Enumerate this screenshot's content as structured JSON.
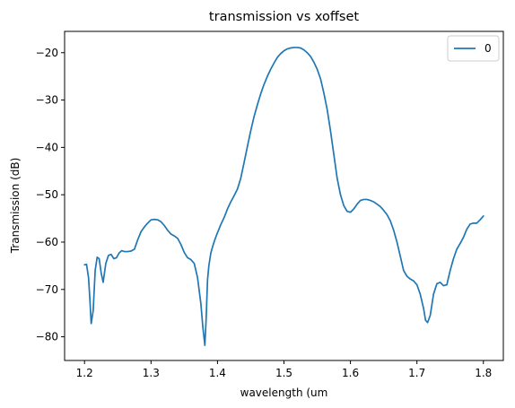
{
  "chart_data": {
    "type": "line",
    "title": "transmission vs xoffset",
    "xlabel": "wavelength (um",
    "ylabel": "Transmission (dB)",
    "xlim": [
      1.17,
      1.83
    ],
    "ylim": [
      -85,
      -15.5
    ],
    "xticks": [
      1.2,
      1.3,
      1.4,
      1.5,
      1.6,
      1.7,
      1.8
    ],
    "xtick_labels": [
      "1.2",
      "1.3",
      "1.4",
      "1.5",
      "1.6",
      "1.7",
      "1.8"
    ],
    "yticks": [
      -80,
      -70,
      -60,
      -50,
      -40,
      -30,
      -20
    ],
    "ytick_labels": [
      "−80",
      "−70",
      "−60",
      "−50",
      "−40",
      "−30",
      "−20"
    ],
    "grid": false,
    "legend_position": "top-right",
    "colors": {
      "series": "#1f77b4",
      "axes": "#000000",
      "legend_border": "#cccccc"
    },
    "series": [
      {
        "name": "0",
        "x": [
          1.2,
          1.203,
          1.206,
          1.208,
          1.21,
          1.213,
          1.216,
          1.219,
          1.222,
          1.225,
          1.228,
          1.232,
          1.236,
          1.24,
          1.244,
          1.248,
          1.252,
          1.256,
          1.26,
          1.265,
          1.27,
          1.275,
          1.28,
          1.285,
          1.29,
          1.295,
          1.3,
          1.305,
          1.31,
          1.315,
          1.32,
          1.325,
          1.33,
          1.335,
          1.34,
          1.345,
          1.35,
          1.355,
          1.36,
          1.365,
          1.37,
          1.375,
          1.378,
          1.381,
          1.383,
          1.385,
          1.387,
          1.39,
          1.393,
          1.396,
          1.4,
          1.405,
          1.41,
          1.415,
          1.42,
          1.425,
          1.43,
          1.435,
          1.44,
          1.445,
          1.45,
          1.455,
          1.46,
          1.465,
          1.47,
          1.475,
          1.48,
          1.485,
          1.49,
          1.495,
          1.5,
          1.505,
          1.51,
          1.515,
          1.52,
          1.525,
          1.53,
          1.535,
          1.54,
          1.545,
          1.55,
          1.555,
          1.56,
          1.565,
          1.57,
          1.575,
          1.58,
          1.585,
          1.59,
          1.595,
          1.6,
          1.605,
          1.61,
          1.615,
          1.62,
          1.625,
          1.63,
          1.635,
          1.64,
          1.645,
          1.65,
          1.655,
          1.66,
          1.665,
          1.67,
          1.675,
          1.68,
          1.685,
          1.69,
          1.695,
          1.7,
          1.705,
          1.71,
          1.713,
          1.716,
          1.72,
          1.725,
          1.73,
          1.735,
          1.74,
          1.745,
          1.75,
          1.755,
          1.76,
          1.765,
          1.77,
          1.775,
          1.78,
          1.785,
          1.79,
          1.795,
          1.8
        ],
        "y": [
          -64.8,
          -64.7,
          -67.5,
          -72.0,
          -77.2,
          -74.5,
          -66.0,
          -63.2,
          -63.5,
          -66.5,
          -68.5,
          -64.5,
          -62.8,
          -62.6,
          -63.5,
          -63.3,
          -62.3,
          -61.8,
          -62.0,
          -62.0,
          -61.9,
          -61.5,
          -59.5,
          -57.8,
          -56.8,
          -56.0,
          -55.3,
          -55.2,
          -55.3,
          -55.7,
          -56.5,
          -57.5,
          -58.3,
          -58.7,
          -59.2,
          -60.5,
          -62.2,
          -63.3,
          -63.7,
          -64.5,
          -67.5,
          -73.0,
          -78.0,
          -81.8,
          -76.0,
          -68.0,
          -65.0,
          -62.3,
          -60.8,
          -59.5,
          -58.0,
          -56.3,
          -54.8,
          -53.0,
          -51.5,
          -50.2,
          -48.8,
          -46.5,
          -43.2,
          -39.8,
          -36.5,
          -33.5,
          -31.0,
          -28.7,
          -26.7,
          -25.0,
          -23.5,
          -22.2,
          -21.0,
          -20.2,
          -19.6,
          -19.2,
          -19.0,
          -18.9,
          -18.9,
          -19.0,
          -19.4,
          -20.0,
          -20.8,
          -22.0,
          -23.5,
          -25.5,
          -28.5,
          -32.0,
          -36.5,
          -41.5,
          -46.5,
          -50.0,
          -52.3,
          -53.5,
          -53.7,
          -53.0,
          -52.0,
          -51.2,
          -51.0,
          -51.0,
          -51.2,
          -51.5,
          -52.0,
          -52.5,
          -53.3,
          -54.2,
          -55.5,
          -57.5,
          -60.0,
          -63.0,
          -66.0,
          -67.2,
          -67.8,
          -68.2,
          -69.0,
          -71.0,
          -74.0,
          -76.5,
          -77.0,
          -75.5,
          -71.0,
          -68.8,
          -68.5,
          -69.2,
          -69.0,
          -66.0,
          -63.5,
          -61.5,
          -60.3,
          -59.0,
          -57.3,
          -56.2,
          -56.0,
          -56.0,
          -55.3,
          -54.5
        ]
      }
    ]
  }
}
